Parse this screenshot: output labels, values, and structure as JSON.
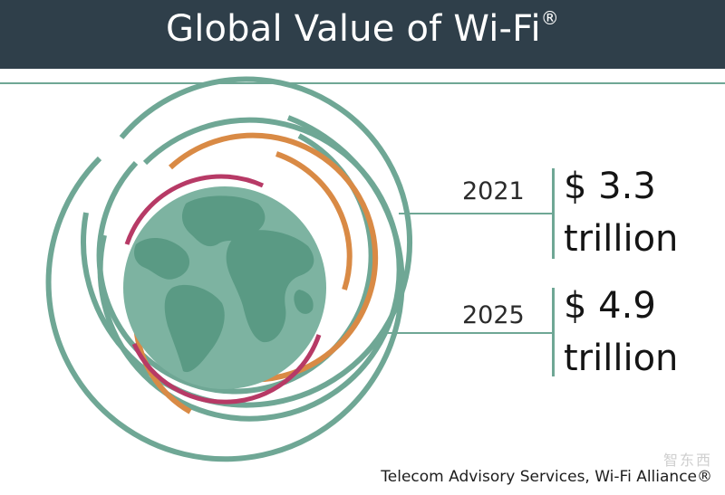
{
  "header": {
    "title": "Global Value of Wi-Fi",
    "reg_mark": "®"
  },
  "stats": [
    {
      "year": "2021",
      "value_line1": "$ 3.3",
      "value_line2": "trillion"
    },
    {
      "year": "2025",
      "value_line1": "$ 4.9",
      "value_line2": "trillion"
    }
  ],
  "source": "Telecom Advisory Services, Wi-Fi Alliance®",
  "watermark": "智东西",
  "colors": {
    "header_bg": "#2f3f4a",
    "green": "#6fa795",
    "orange": "#d98a45",
    "magenta": "#b73a66",
    "globe_ocean": "#6fa795",
    "globe_land": "#4f8c78"
  }
}
